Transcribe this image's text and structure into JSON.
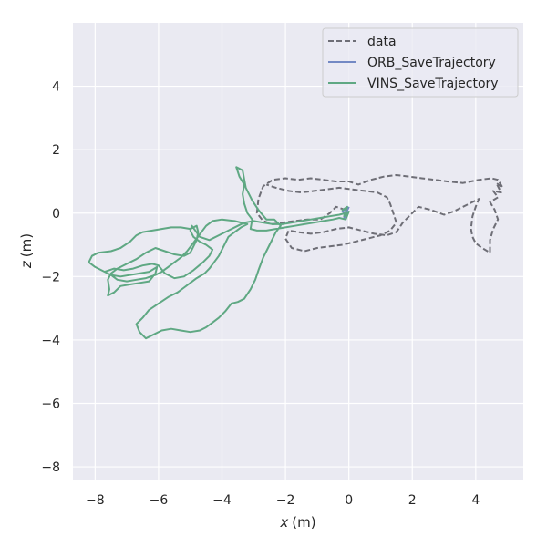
{
  "chart_data": {
    "type": "line",
    "xlabel_var": "x",
    "xlabel_unit": "(m)",
    "ylabel_var": "z",
    "ylabel_unit": "(m)",
    "xlim": [
      -8.7,
      5.5
    ],
    "ylim": [
      -8.4,
      6.0
    ],
    "xticks": [
      -8,
      -6,
      -4,
      -2,
      0,
      2,
      4
    ],
    "xtick_labels": [
      "−8",
      "−6",
      "−4",
      "−2",
      "0",
      "2",
      "4"
    ],
    "yticks": [
      -8,
      -6,
      -4,
      -2,
      0,
      2,
      4
    ],
    "ytick_labels": [
      "−8",
      "−6",
      "−4",
      "−2",
      "0",
      "2",
      "4"
    ],
    "grid": true,
    "legend_position": "top-right",
    "colors": {
      "background": "#eaeaf2",
      "grid": "#ffffff",
      "data": "#6e6e76",
      "orb": "#7389c4",
      "vins": "#5fa883"
    },
    "series": [
      {
        "name": "data",
        "style": "dashed",
        "points": [
          [
            -0.1,
            0.1
          ],
          [
            -0.4,
            0.2
          ],
          [
            -0.6,
            0.0
          ],
          [
            -0.9,
            -0.2
          ],
          [
            -1.3,
            -0.2
          ],
          [
            -1.7,
            -0.25
          ],
          [
            -2.1,
            -0.3
          ],
          [
            -2.4,
            -0.35
          ],
          [
            -2.7,
            -0.25
          ],
          [
            -2.9,
            0.0
          ],
          [
            -2.85,
            0.45
          ],
          [
            -2.7,
            0.85
          ],
          [
            -2.4,
            1.05
          ],
          [
            -2.0,
            1.1
          ],
          [
            -1.6,
            1.05
          ],
          [
            -1.2,
            1.1
          ],
          [
            -0.8,
            1.05
          ],
          [
            -0.4,
            1.0
          ],
          [
            0.0,
            1.0
          ],
          [
            0.3,
            0.9
          ],
          [
            0.7,
            1.05
          ],
          [
            1.1,
            1.15
          ],
          [
            1.5,
            1.2
          ],
          [
            1.9,
            1.15
          ],
          [
            2.3,
            1.1
          ],
          [
            2.7,
            1.05
          ],
          [
            3.1,
            1.0
          ],
          [
            3.6,
            0.95
          ],
          [
            4.1,
            1.05
          ],
          [
            4.5,
            1.1
          ],
          [
            4.7,
            1.05
          ],
          [
            4.85,
            0.8
          ],
          [
            4.65,
            0.95
          ],
          [
            4.8,
            0.65
          ],
          [
            4.55,
            0.7
          ],
          [
            4.7,
            0.5
          ],
          [
            4.45,
            0.35
          ],
          [
            4.6,
            0.1
          ],
          [
            4.7,
            -0.2
          ],
          [
            4.55,
            -0.5
          ],
          [
            4.45,
            -0.85
          ],
          [
            4.45,
            -1.25
          ],
          [
            4.2,
            -1.1
          ],
          [
            4.0,
            -0.95
          ],
          [
            3.9,
            -0.75
          ],
          [
            3.85,
            -0.5
          ],
          [
            3.9,
            -0.1
          ],
          [
            4.0,
            0.2
          ],
          [
            4.1,
            0.45
          ],
          [
            3.9,
            0.35
          ],
          [
            3.6,
            0.2
          ],
          [
            3.3,
            0.05
          ],
          [
            3.0,
            -0.05
          ],
          [
            2.6,
            0.1
          ],
          [
            2.2,
            0.2
          ],
          [
            2.0,
            0.0
          ],
          [
            1.7,
            -0.3
          ],
          [
            1.5,
            -0.6
          ],
          [
            1.2,
            -0.7
          ],
          [
            0.8,
            -0.65
          ],
          [
            0.4,
            -0.55
          ],
          [
            0.0,
            -0.45
          ],
          [
            -0.4,
            -0.5
          ],
          [
            -0.8,
            -0.6
          ],
          [
            -1.2,
            -0.65
          ],
          [
            -1.6,
            -0.6
          ],
          [
            -1.9,
            -0.55
          ],
          [
            -2.0,
            -0.8
          ],
          [
            -1.8,
            -1.1
          ],
          [
            -1.4,
            -1.2
          ],
          [
            -1.0,
            -1.1
          ],
          [
            -0.6,
            -1.05
          ],
          [
            -0.2,
            -1.0
          ],
          [
            0.2,
            -0.9
          ],
          [
            0.6,
            -0.8
          ],
          [
            1.0,
            -0.7
          ],
          [
            1.3,
            -0.55
          ],
          [
            1.5,
            -0.3
          ],
          [
            1.4,
            0.0
          ],
          [
            1.3,
            0.3
          ],
          [
            1.2,
            0.5
          ],
          [
            0.9,
            0.65
          ],
          [
            0.5,
            0.7
          ],
          [
            0.1,
            0.75
          ],
          [
            -0.3,
            0.8
          ],
          [
            -0.7,
            0.75
          ],
          [
            -1.1,
            0.7
          ],
          [
            -1.5,
            0.65
          ],
          [
            -1.9,
            0.7
          ],
          [
            -2.3,
            0.8
          ],
          [
            -2.6,
            0.9
          ]
        ]
      },
      {
        "name": "ORB_SaveTrajectory",
        "style": "solid",
        "points": [
          [
            -0.1,
            0.15
          ],
          [
            -0.2,
            0.05
          ],
          [
            -0.05,
            -0.05
          ],
          [
            -0.15,
            -0.15
          ],
          [
            0.0,
            0.2
          ]
        ]
      },
      {
        "name": "VINS_SaveTrajectory",
        "style": "solid",
        "points": [
          [
            -0.1,
            0.15
          ],
          [
            -0.2,
            0.1
          ],
          [
            -0.05,
            0.2
          ],
          [
            -0.15,
            -0.1
          ],
          [
            0.0,
            0.05
          ],
          [
            -0.1,
            -0.2
          ],
          [
            -0.3,
            -0.15
          ],
          [
            -0.5,
            -0.2
          ],
          [
            -0.8,
            -0.25
          ],
          [
            -1.1,
            -0.3
          ],
          [
            -1.4,
            -0.35
          ],
          [
            -1.7,
            -0.4
          ],
          [
            -2.0,
            -0.45
          ],
          [
            -2.3,
            -0.5
          ],
          [
            -2.6,
            -0.55
          ],
          [
            -2.9,
            -0.55
          ],
          [
            -3.1,
            -0.5
          ],
          [
            -3.05,
            -0.2
          ],
          [
            -3.2,
            0.0
          ],
          [
            -3.3,
            0.3
          ],
          [
            -3.35,
            0.6
          ],
          [
            -3.3,
            0.9
          ],
          [
            -3.45,
            1.15
          ],
          [
            -3.55,
            1.45
          ],
          [
            -3.35,
            1.35
          ],
          [
            -3.25,
            0.8
          ],
          [
            -3.05,
            0.4
          ],
          [
            -2.85,
            0.1
          ],
          [
            -2.6,
            -0.2
          ],
          [
            -2.35,
            -0.2
          ],
          [
            -2.15,
            -0.4
          ],
          [
            -2.3,
            -0.6
          ],
          [
            -2.5,
            -1.0
          ],
          [
            -2.7,
            -1.4
          ],
          [
            -2.85,
            -1.8
          ],
          [
            -2.95,
            -2.1
          ],
          [
            -3.1,
            -2.4
          ],
          [
            -3.3,
            -2.7
          ],
          [
            -3.5,
            -2.8
          ],
          [
            -3.7,
            -2.85
          ],
          [
            -3.9,
            -3.1
          ],
          [
            -4.1,
            -3.3
          ],
          [
            -4.3,
            -3.45
          ],
          [
            -4.5,
            -3.6
          ],
          [
            -4.7,
            -3.7
          ],
          [
            -5.0,
            -3.75
          ],
          [
            -5.3,
            -3.7
          ],
          [
            -5.6,
            -3.65
          ],
          [
            -5.9,
            -3.7
          ],
          [
            -6.2,
            -3.85
          ],
          [
            -6.4,
            -3.95
          ],
          [
            -6.6,
            -3.75
          ],
          [
            -6.7,
            -3.5
          ],
          [
            -6.5,
            -3.3
          ],
          [
            -6.3,
            -3.05
          ],
          [
            -6.0,
            -2.85
          ],
          [
            -5.7,
            -2.65
          ],
          [
            -5.4,
            -2.5
          ],
          [
            -5.2,
            -2.35
          ],
          [
            -5.0,
            -2.2
          ],
          [
            -4.8,
            -2.05
          ],
          [
            -4.55,
            -1.9
          ],
          [
            -4.4,
            -1.75
          ],
          [
            -4.25,
            -1.55
          ],
          [
            -4.1,
            -1.35
          ],
          [
            -4.0,
            -1.15
          ],
          [
            -3.9,
            -0.95
          ],
          [
            -3.8,
            -0.75
          ],
          [
            -3.6,
            -0.6
          ],
          [
            -3.4,
            -0.45
          ],
          [
            -3.2,
            -0.35
          ],
          [
            -3.6,
            -0.25
          ],
          [
            -4.0,
            -0.2
          ],
          [
            -4.3,
            -0.25
          ],
          [
            -4.5,
            -0.4
          ],
          [
            -4.65,
            -0.6
          ],
          [
            -4.8,
            -0.8
          ],
          [
            -4.95,
            -1.0
          ],
          [
            -5.1,
            -1.2
          ],
          [
            -5.3,
            -1.4
          ],
          [
            -5.5,
            -1.55
          ],
          [
            -5.7,
            -1.7
          ],
          [
            -5.9,
            -1.85
          ],
          [
            -6.1,
            -1.95
          ],
          [
            -6.4,
            -2.05
          ],
          [
            -6.7,
            -2.1
          ],
          [
            -7.0,
            -2.15
          ],
          [
            -7.3,
            -2.1
          ],
          [
            -7.5,
            -1.95
          ],
          [
            -7.8,
            -1.8
          ],
          [
            -8.0,
            -1.7
          ],
          [
            -8.2,
            -1.55
          ],
          [
            -8.1,
            -1.35
          ],
          [
            -7.9,
            -1.25
          ],
          [
            -7.5,
            -1.2
          ],
          [
            -7.2,
            -1.1
          ],
          [
            -6.9,
            -0.9
          ],
          [
            -6.7,
            -0.7
          ],
          [
            -6.5,
            -0.6
          ],
          [
            -6.2,
            -0.55
          ],
          [
            -5.9,
            -0.5
          ],
          [
            -5.6,
            -0.45
          ],
          [
            -5.3,
            -0.45
          ],
          [
            -5.0,
            -0.5
          ],
          [
            -4.8,
            -0.4
          ],
          [
            -4.75,
            -0.6
          ],
          [
            -4.8,
            -0.85
          ],
          [
            -4.9,
            -1.05
          ],
          [
            -5.0,
            -1.25
          ],
          [
            -5.2,
            -1.35
          ],
          [
            -5.5,
            -1.3
          ],
          [
            -5.8,
            -1.2
          ],
          [
            -6.1,
            -1.1
          ],
          [
            -6.4,
            -1.25
          ],
          [
            -6.7,
            -1.45
          ],
          [
            -7.0,
            -1.6
          ],
          [
            -7.3,
            -1.75
          ],
          [
            -7.5,
            -1.9
          ],
          [
            -7.6,
            -2.1
          ],
          [
            -7.55,
            -2.4
          ],
          [
            -7.6,
            -2.6
          ],
          [
            -7.4,
            -2.5
          ],
          [
            -7.2,
            -2.3
          ],
          [
            -6.9,
            -2.25
          ],
          [
            -6.6,
            -2.2
          ],
          [
            -6.3,
            -2.15
          ],
          [
            -6.1,
            -1.9
          ],
          [
            -6.05,
            -1.7
          ],
          [
            -6.3,
            -1.85
          ],
          [
            -6.6,
            -1.9
          ],
          [
            -6.9,
            -1.95
          ],
          [
            -7.2,
            -2.0
          ],
          [
            -7.5,
            -1.95
          ],
          [
            -7.7,
            -1.85
          ],
          [
            -7.4,
            -1.75
          ],
          [
            -7.1,
            -1.8
          ],
          [
            -6.8,
            -1.75
          ],
          [
            -6.5,
            -1.65
          ],
          [
            -6.2,
            -1.6
          ],
          [
            -6.0,
            -1.65
          ],
          [
            -5.8,
            -1.9
          ],
          [
            -5.5,
            -2.05
          ],
          [
            -5.2,
            -2.0
          ],
          [
            -4.9,
            -1.8
          ],
          [
            -4.6,
            -1.55
          ],
          [
            -4.4,
            -1.35
          ],
          [
            -4.3,
            -1.15
          ],
          [
            -4.5,
            -1.0
          ],
          [
            -4.7,
            -0.9
          ],
          [
            -4.9,
            -0.75
          ],
          [
            -5.0,
            -0.55
          ],
          [
            -4.95,
            -0.4
          ],
          [
            -4.7,
            -0.75
          ],
          [
            -4.4,
            -0.85
          ],
          [
            -4.1,
            -0.7
          ],
          [
            -3.8,
            -0.55
          ],
          [
            -3.5,
            -0.4
          ],
          [
            -3.3,
            -0.3
          ],
          [
            -3.0,
            -0.25
          ],
          [
            -2.7,
            -0.3
          ],
          [
            -2.4,
            -0.35
          ],
          [
            -2.1,
            -0.35
          ],
          [
            -1.8,
            -0.3
          ],
          [
            -1.5,
            -0.25
          ],
          [
            -1.2,
            -0.2
          ],
          [
            -0.9,
            -0.15
          ],
          [
            -0.6,
            -0.1
          ],
          [
            -0.3,
            -0.05
          ],
          [
            -0.1,
            0.0
          ]
        ]
      }
    ]
  }
}
